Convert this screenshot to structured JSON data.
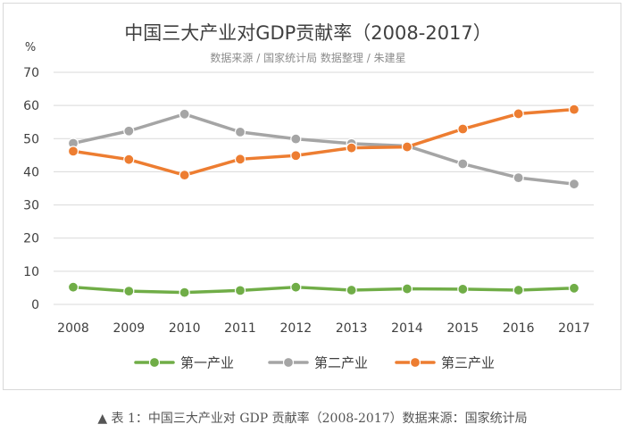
{
  "chart_data": {
    "type": "line",
    "title": "中国三大产业对GDP贡献率（2008-2017）",
    "subtitle": "数据来源 / 国家统计局 数据整理 / 朱建星",
    "ylabel": "%",
    "xlabel": "",
    "ylim": [
      0,
      70
    ],
    "yticks": [
      0,
      10,
      20,
      30,
      40,
      50,
      60,
      70
    ],
    "grid": true,
    "legend_position": "bottom",
    "categories": [
      "2008",
      "2009",
      "2010",
      "2011",
      "2012",
      "2013",
      "2014",
      "2015",
      "2016",
      "2017"
    ],
    "series": [
      {
        "name": "第一产业",
        "color": "#70AD47",
        "values": [
          5.2,
          4.0,
          3.6,
          4.2,
          5.2,
          4.3,
          4.7,
          4.6,
          4.3,
          4.9
        ]
      },
      {
        "name": "第二产业",
        "color": "#A5A5A5",
        "values": [
          48.6,
          52.3,
          57.4,
          52.0,
          49.9,
          48.5,
          47.8,
          42.4,
          38.2,
          36.3
        ]
      },
      {
        "name": "第三产业",
        "color": "#ED7D31",
        "values": [
          46.2,
          43.7,
          39.0,
          43.8,
          44.9,
          47.2,
          47.5,
          52.9,
          57.5,
          58.8
        ]
      }
    ]
  },
  "caption": "▲ 表 1：中国三大产业对 GDP 贡献率（2008-2017）数据来源：国家统计局"
}
